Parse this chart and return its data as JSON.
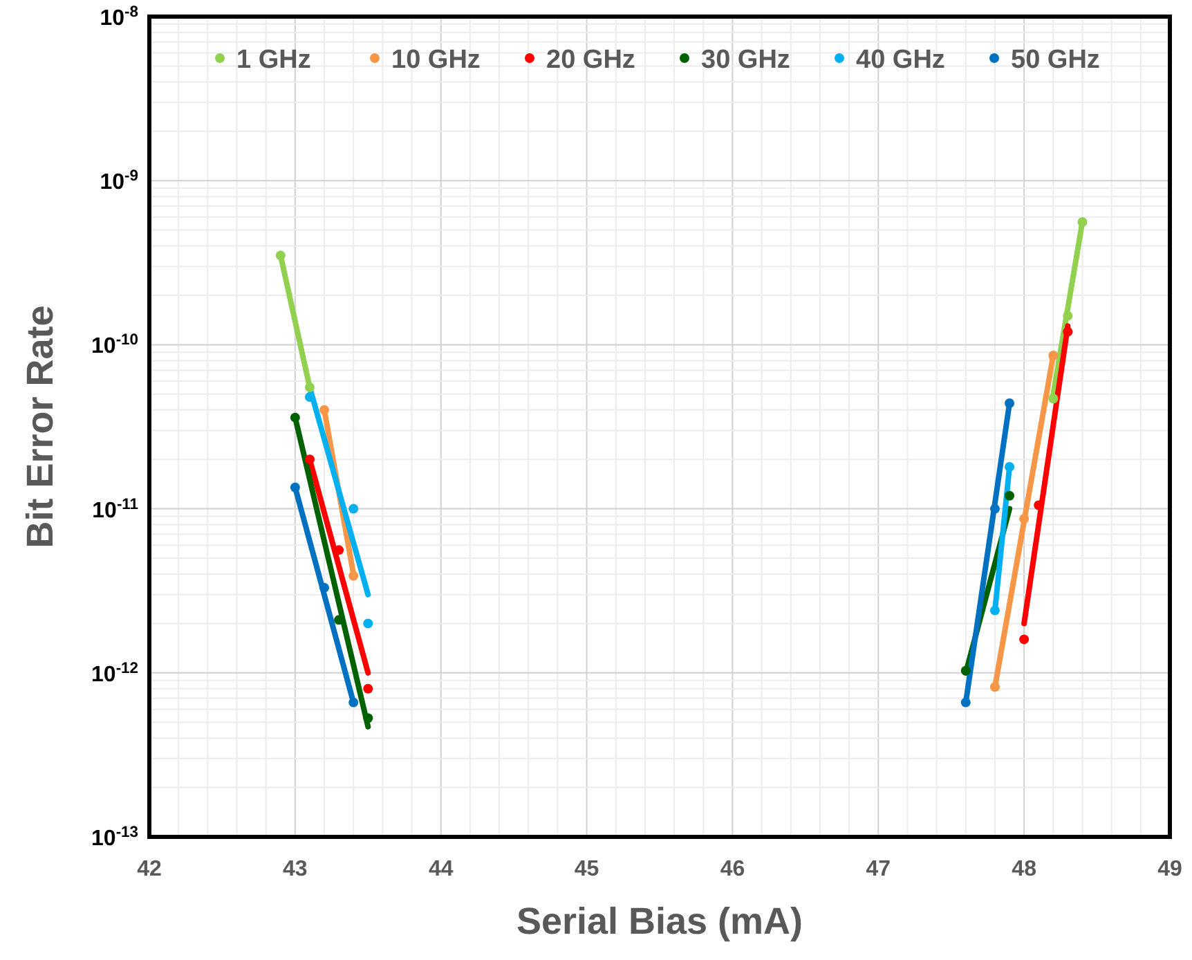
{
  "chart_data": {
    "type": "scatter",
    "xlabel": "Serial Bias (mA)",
    "ylabel": "Bit Error Rate",
    "log": "y",
    "grid": true,
    "legend": "top",
    "xlim": [
      42,
      49
    ],
    "xticks": [
      42,
      43,
      44,
      45,
      46,
      47,
      48,
      49
    ],
    "ylim": [
      1e-13,
      1e-08
    ],
    "yticks": [
      {
        "value": 1e-13,
        "label": "10$^{-13}$"
      },
      {
        "value": 1e-12,
        "label": "10$^{-12}$"
      },
      {
        "value": 1e-11,
        "label": "10$^{-11}$"
      },
      {
        "value": 1e-10,
        "label": "10$^{-10}$"
      },
      {
        "value": 1e-09,
        "label": "10$^{-9}$"
      },
      {
        "value": 1e-08,
        "label": "10$^{-8}$"
      }
    ],
    "series": [
      {
        "type": "line",
        "marker": "none",
        "color": "#92d050",
        "x": [
          42.9,
          43.1,
          null,
          48.2,
          48.4
        ],
        "values": [
          3.5e-10,
          5.5e-11,
          null,
          5e-11,
          5.6e-10
        ]
      },
      {
        "type": "line",
        "marker": "none",
        "color": "#f79646",
        "x": [
          43.2,
          43.4,
          null,
          47.8,
          48.2
        ],
        "values": [
          4e-11,
          4e-12,
          null,
          8.2e-13,
          8.6e-11
        ]
      },
      {
        "type": "line",
        "marker": "none",
        "color": "#ff0000",
        "x": [
          43.1,
          43.5,
          null,
          48.0,
          48.3
        ],
        "values": [
          2e-11,
          1e-12,
          null,
          2e-12,
          1.3e-10
        ]
      },
      {
        "type": "line",
        "marker": "none",
        "color": "#006100",
        "x": [
          43.0,
          43.5,
          null,
          47.6,
          47.9
        ],
        "values": [
          3.6e-11,
          4.7e-13,
          null,
          1e-12,
          1e-11
        ]
      },
      {
        "type": "line",
        "marker": "none",
        "color": "#00b0f0",
        "x": [
          43.1,
          43.5,
          null,
          47.8,
          47.9
        ],
        "values": [
          5.5e-11,
          3e-12,
          null,
          2.4e-12,
          1.8e-11
        ]
      },
      {
        "type": "line",
        "marker": "none",
        "color": "#0070c0",
        "x": [
          43.0,
          43.4,
          null,
          47.6,
          47.9
        ],
        "values": [
          1.35e-11,
          6.6e-13,
          null,
          6.6e-13,
          4.4e-11
        ]
      },
      {
        "name": "1 GHz",
        "marker": "circle",
        "color": "#92d050",
        "x": [
          42.9,
          43.1,
          48.2,
          48.3,
          48.4
        ],
        "values": [
          3.5e-10,
          5.5e-11,
          4.7e-11,
          1.5e-10,
          5.6e-10
        ]
      },
      {
        "name": "10 GHz",
        "marker": "circle",
        "color": "#f79646",
        "x": [
          43.2,
          43.4,
          47.8,
          48.0,
          48.2
        ],
        "values": [
          4e-11,
          3.9e-12,
          8.2e-13,
          8.7e-12,
          8.6e-11
        ]
      },
      {
        "name": "20 GHz",
        "marker": "circle",
        "color": "#ff0000",
        "x": [
          43.1,
          43.3,
          43.5,
          48.0,
          48.1,
          48.3
        ],
        "values": [
          2e-11,
          5.6e-12,
          8e-13,
          1.6e-12,
          1.05e-11,
          1.2e-10
        ]
      },
      {
        "name": "30 GHz",
        "marker": "circle",
        "color": "#006100",
        "x": [
          43.0,
          43.3,
          43.5,
          47.6,
          47.9
        ],
        "values": [
          3.6e-11,
          2.1e-12,
          5.3e-13,
          1.03e-12,
          1.2e-11
        ]
      },
      {
        "name": "40 GHz",
        "marker": "circle",
        "color": "#00b0f0",
        "x": [
          43.1,
          43.4,
          43.5,
          47.8,
          47.9
        ],
        "values": [
          4.8e-11,
          1e-11,
          2e-12,
          2.4e-12,
          1.8e-11
        ]
      },
      {
        "name": "50 GHz",
        "marker": "circle",
        "color": "#0070c0",
        "x": [
          43.0,
          43.2,
          43.4,
          47.6,
          47.8,
          47.9
        ],
        "values": [
          1.35e-11,
          3.3e-12,
          6.6e-13,
          6.6e-13,
          1e-11,
          4.4e-11
        ]
      }
    ]
  }
}
